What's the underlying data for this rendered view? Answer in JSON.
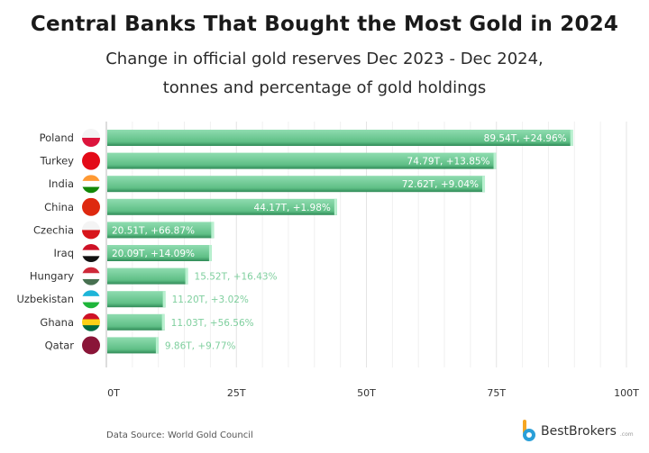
{
  "chart_data": {
    "type": "bar",
    "orientation": "horizontal",
    "title": "Central Banks That Bought the Most Gold in 2024",
    "subtitle": [
      "Change in official gold reserves Dec 2023 - Dec 2024,",
      "tonnes and percentage of gold holdings"
    ],
    "categories": [
      "Poland",
      "Turkey",
      "India",
      "China",
      "Czechia",
      "Iraq",
      "Hungary",
      "Uzbekistan",
      "Ghana",
      "Qatar"
    ],
    "values": [
      89.54,
      74.79,
      72.62,
      44.17,
      20.51,
      20.09,
      15.52,
      11.2,
      11.03,
      9.86
    ],
    "data_labels": [
      "89.54T, +24.96%",
      "74.79T, +13.85%",
      "72.62T, +9.04%",
      "44.17T, +1.98%",
      "20.51T, +66.87%",
      "20.09T, +14.09%",
      "15.52T, +16.43%",
      "11.20T, +3.02%",
      "11.03T, +56.56%",
      "9.86T, +9.77%"
    ],
    "xlim": [
      0,
      100
    ],
    "x_ticks": [
      0,
      25,
      50,
      75,
      100
    ],
    "x_tick_labels": [
      "0T",
      "25T",
      "50T",
      "75T",
      "100T"
    ],
    "grid": true,
    "bar_color": "#6fcf97",
    "flags": [
      {
        "icon": "poland-flag-icon",
        "stripes": [
          "#f4f4f4",
          "#dc143c"
        ]
      },
      {
        "icon": "turkey-flag-icon",
        "stripes": [
          "#e30a17"
        ]
      },
      {
        "icon": "india-flag-icon",
        "stripes": [
          "#ff9933",
          "#ffffff",
          "#138808"
        ]
      },
      {
        "icon": "china-flag-icon",
        "stripes": [
          "#de2910"
        ]
      },
      {
        "icon": "czechia-flag-icon",
        "stripes": [
          "#f4f4f4",
          "#d7141a"
        ]
      },
      {
        "icon": "iraq-flag-icon",
        "stripes": [
          "#ce1126",
          "#ffffff",
          "#111111"
        ]
      },
      {
        "icon": "hungary-flag-icon",
        "stripes": [
          "#ce2939",
          "#ffffff",
          "#477050"
        ]
      },
      {
        "icon": "uzbekistan-flag-icon",
        "stripes": [
          "#1eb5d8",
          "#ffffff",
          "#1eb53a"
        ]
      },
      {
        "icon": "ghana-flag-icon",
        "stripes": [
          "#ce1126",
          "#fcd116",
          "#006b3f"
        ]
      },
      {
        "icon": "qatar-flag-icon",
        "stripes": [
          "#8a1538"
        ]
      }
    ]
  },
  "footer": {
    "source": "Data Source: World Gold Council",
    "brand": "BestBrokers",
    "brand_suffix": ".com"
  }
}
